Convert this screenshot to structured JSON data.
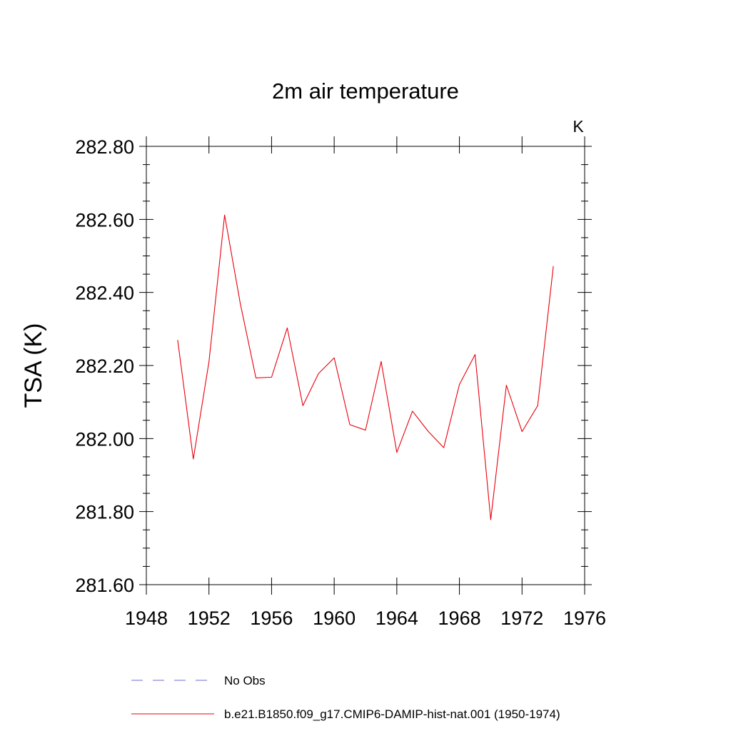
{
  "chart_data": {
    "type": "line",
    "title": "2m air temperature",
    "units_label": "K",
    "ylabel": "TSA  (K)",
    "xlabel": "",
    "xlim": [
      1948,
      1976
    ],
    "ylim": [
      281.6,
      282.8
    ],
    "x_ticks": [
      1948,
      1952,
      1956,
      1960,
      1964,
      1968,
      1972,
      1976
    ],
    "x_tick_labels": [
      "1948",
      "1952",
      "1956",
      "1960",
      "1964",
      "1968",
      "1972",
      "1976"
    ],
    "y_ticks": [
      281.6,
      281.8,
      282.0,
      282.2,
      282.4,
      282.6,
      282.8
    ],
    "y_tick_labels": [
      "281.60",
      "281.80",
      "282.00",
      "282.20",
      "282.40",
      "282.60",
      "282.80"
    ],
    "grid": false,
    "legend_position": "bottom",
    "series": [
      {
        "name": "b.e21.B1850.f09_g17.CMIP6-DAMIP-hist-nat.001 (1950-1974)",
        "color": "#e8000b",
        "line_style": "solid",
        "x": [
          1950,
          1951,
          1952,
          1953,
          1954,
          1955,
          1956,
          1957,
          1958,
          1959,
          1960,
          1961,
          1962,
          1963,
          1964,
          1965,
          1966,
          1967,
          1968,
          1969,
          1970,
          1971,
          1972,
          1973,
          1974
        ],
        "y": [
          282.27,
          281.944,
          282.21,
          282.612,
          282.37,
          282.166,
          282.168,
          282.303,
          282.09,
          282.178,
          282.221,
          282.038,
          282.023,
          282.211,
          281.962,
          282.075,
          282.02,
          281.975,
          282.148,
          282.23,
          281.778,
          282.146,
          282.019,
          282.09,
          282.472
        ]
      }
    ],
    "legend": [
      {
        "label": "No Obs",
        "color": "#6b6bd6",
        "line_style": "dashed"
      },
      {
        "label": "b.e21.B1850.f09_g17.CMIP6-DAMIP-hist-nat.001 (1950-1974)",
        "color": "#e8000b",
        "line_style": "solid"
      }
    ]
  }
}
